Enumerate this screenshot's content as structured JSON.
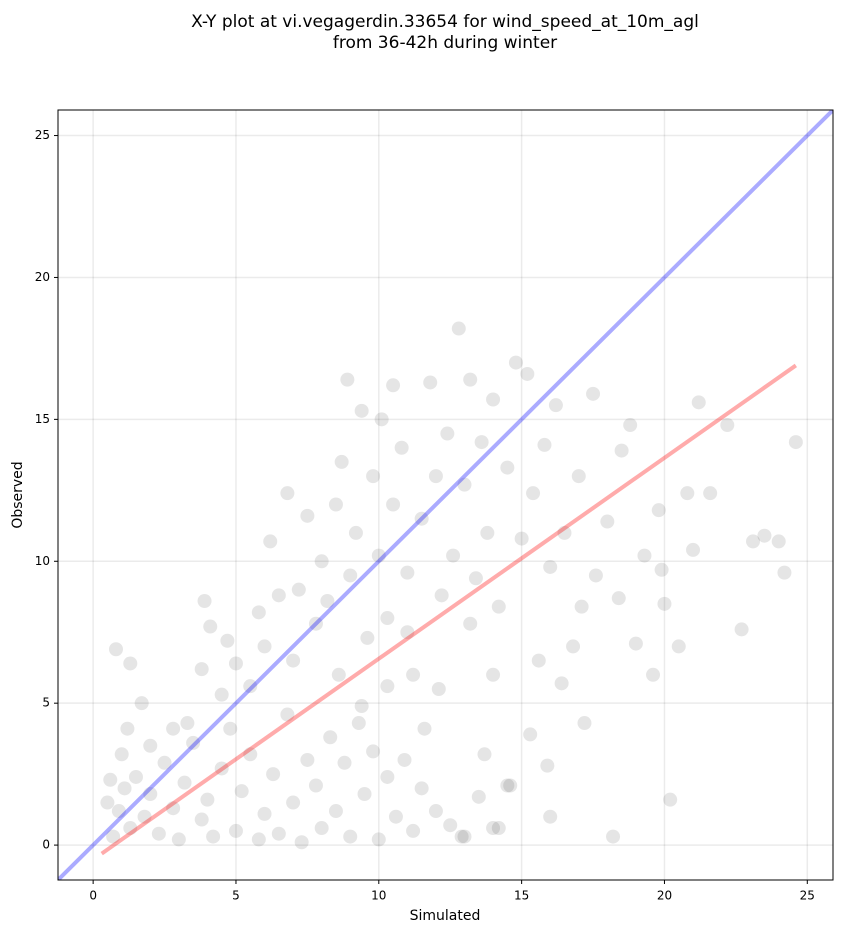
{
  "chart_data": {
    "type": "scatter",
    "title": [
      "X-Y plot at vi.vegagerdin.33654 for wind_speed_at_10m_agl",
      "from 36-42h during winter"
    ],
    "x_label": "Simulated",
    "y_label": "Observed",
    "xlim": [
      -1.23,
      25.9
    ],
    "ylim": [
      -1.23,
      25.9
    ],
    "xticks": [
      0,
      5,
      10,
      15,
      20,
      25
    ],
    "yticks": [
      0,
      5,
      10,
      15,
      20,
      25
    ],
    "grid": true,
    "scatter": {
      "color": "#000000",
      "alpha": 0.1,
      "x": [
        0.7,
        0.9,
        1.1,
        1.3,
        1.5,
        1.8,
        2.0,
        2.3,
        2.5,
        2.8,
        3.0,
        3.2,
        3.5,
        3.8,
        4.0,
        4.2,
        4.5,
        4.8,
        5.0,
        5.2,
        5.5,
        5.8,
        6.0,
        6.3,
        6.5,
        6.8,
        7.0,
        7.3,
        7.5,
        7.8,
        8.0,
        8.3,
        8.5,
        8.8,
        9.0,
        9.3,
        9.5,
        9.8,
        10.0,
        10.3,
        10.6,
        10.9,
        11.2,
        11.5,
        12.0,
        12.5,
        13.0,
        13.5,
        14.0,
        14.5,
        0.8,
        1.3,
        1.7,
        0.6,
        0.5,
        4.5,
        5.0,
        5.5,
        5.8,
        6.0,
        6.2,
        6.5,
        6.8,
        7.0,
        7.2,
        7.5,
        7.8,
        8.0,
        8.2,
        8.5,
        8.7,
        8.9,
        9.0,
        9.2,
        9.4,
        9.6,
        9.8,
        10.0,
        10.1,
        10.3,
        10.5,
        10.5,
        10.8,
        11.0,
        11.2,
        11.5,
        11.8,
        12.0,
        12.2,
        12.4,
        12.6,
        12.8,
        13.0,
        13.2,
        13.4,
        13.6,
        13.8,
        14.0,
        14.2,
        14.5,
        14.8,
        15.0,
        15.2,
        15.4,
        15.6,
        15.8,
        16.0,
        16.0,
        16.2,
        16.5,
        16.8,
        17.0,
        17.2,
        17.5,
        17.6,
        18.0,
        18.2,
        18.5,
        18.8,
        19.0,
        19.3,
        19.6,
        19.9,
        20.2,
        20.5,
        20.8,
        21.0,
        21.2,
        21.6,
        22.2,
        22.7,
        23.1,
        23.5,
        24.0,
        24.2,
        24.6,
        20.0,
        19.8,
        15.9,
        14.6,
        14.2,
        13.7,
        12.9,
        11.6,
        10.3,
        9.4,
        8.6,
        3.9,
        4.1,
        3.8,
        4.7,
        2.8,
        3.3,
        2.0,
        1.2,
        1.0,
        15.3,
        16.4,
        17.1,
        18.4,
        12.1,
        11.0,
        13.2,
        14.0
      ],
      "y": [
        0.3,
        1.2,
        2.0,
        0.6,
        2.4,
        1.0,
        1.8,
        0.4,
        2.9,
        1.3,
        0.2,
        2.2,
        3.6,
        0.9,
        1.6,
        0.3,
        2.7,
        4.1,
        0.5,
        1.9,
        3.2,
        0.2,
        1.1,
        2.5,
        0.4,
        4.6,
        1.5,
        0.1,
        3.0,
        2.1,
        0.6,
        3.8,
        1.2,
        2.9,
        0.3,
        4.3,
        1.8,
        3.3,
        0.2,
        2.4,
        1.0,
        3.0,
        0.5,
        2.0,
        1.2,
        0.7,
        0.3,
        1.7,
        0.6,
        2.1,
        6.9,
        6.4,
        5.0,
        2.3,
        1.5,
        5.3,
        6.4,
        5.6,
        8.2,
        7.0,
        10.7,
        8.8,
        12.4,
        6.5,
        9.0,
        11.6,
        7.8,
        10.0,
        8.6,
        12.0,
        13.5,
        16.4,
        9.5,
        11.0,
        15.3,
        7.3,
        13.0,
        10.2,
        15.0,
        8.0,
        12.0,
        16.2,
        14.0,
        9.6,
        6.0,
        11.5,
        16.3,
        13.0,
        8.8,
        14.5,
        10.2,
        18.2,
        12.7,
        16.4,
        9.4,
        14.2,
        11.0,
        15.7,
        8.4,
        13.3,
        17.0,
        10.8,
        16.6,
        12.4,
        6.5,
        14.1,
        9.8,
        1.0,
        15.5,
        11.0,
        7.0,
        13.0,
        4.3,
        15.9,
        9.5,
        11.4,
        0.3,
        13.9,
        14.8,
        7.1,
        10.2,
        6.0,
        9.7,
        1.6,
        7.0,
        12.4,
        10.4,
        15.6,
        12.4,
        14.8,
        7.6,
        10.7,
        10.9,
        10.7,
        9.6,
        14.2,
        8.5,
        11.8,
        2.8,
        2.1,
        0.6,
        3.2,
        0.3,
        4.1,
        5.6,
        4.9,
        6.0,
        8.6,
        7.7,
        6.2,
        7.2,
        4.1,
        4.3,
        3.5,
        4.1,
        3.2,
        3.9,
        5.7,
        8.4,
        8.7,
        5.5,
        7.5,
        7.8,
        6.0
      ]
    },
    "lines": [
      {
        "color": "#0000ff",
        "alpha": 0.33,
        "x": [
          -1.23,
          25.9
        ],
        "y": [
          -1.23,
          25.9
        ]
      },
      {
        "color": "#ff0000",
        "alpha": 0.33,
        "x": [
          0.3,
          24.6
        ],
        "y": [
          -0.3,
          16.9
        ]
      }
    ]
  }
}
